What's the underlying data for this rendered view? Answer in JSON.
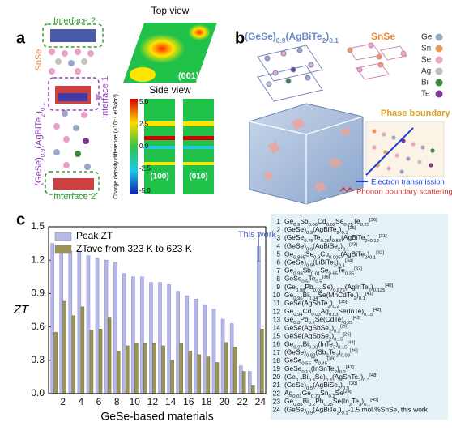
{
  "panel_a": {
    "label": "a",
    "interface_top": "Interface 2",
    "snse": "SnSe",
    "compound": "(GeSe)0.9(AgBiTe2)0.1",
    "interface_1": "Interface 1",
    "interface_bottom": "Interface 2",
    "top_view": "Top view",
    "top_plane": "(001)",
    "side_view": "Side view",
    "side_plane_1": "(100)",
    "side_plane_2": "(010)",
    "colorbar_label": "Charge density difference (×10⁻⁴ e/Bohr³)",
    "colorbar_ticks": [
      "5.0",
      "2.5",
      "0.0",
      "-2.5",
      "-5.0"
    ]
  },
  "panel_b": {
    "label": "b",
    "compound": "(GeSe)0.9(AgBiTe2)0.1",
    "snse": "SnSe",
    "elements": [
      "Ge",
      "Sn",
      "Se",
      "Ag",
      "Bi",
      "Te"
    ],
    "element_colors": [
      "#9aa7c7",
      "#e89a5a",
      "#e7a6c8",
      "#bdbdbd",
      "#3c8a3c",
      "#7a3b96"
    ],
    "phase_boundary": "Phase boundary",
    "electron": "Electron transmission",
    "phonon": "Phonon boundary scattering"
  },
  "chart_data": {
    "type": "bar",
    "panel_label": "c",
    "x_label": "GeSe-based materials",
    "y_label": "ZT",
    "annotation": "This work",
    "x": [
      1,
      2,
      3,
      4,
      5,
      6,
      7,
      8,
      9,
      10,
      11,
      12,
      13,
      14,
      15,
      16,
      17,
      18,
      19,
      20,
      21,
      22,
      23,
      24
    ],
    "xlim": [
      0.4,
      24.6
    ],
    "xticks": [
      2,
      4,
      6,
      8,
      10,
      12,
      14,
      16,
      18,
      20,
      22,
      24
    ],
    "ylim": [
      0,
      1.5
    ],
    "yticks": [
      {
        "value": 0,
        "label": "0.0"
      },
      0.3,
      0.6,
      0.9,
      1.2,
      1.5
    ],
    "series": [
      {
        "name": "Peak ZT",
        "color": "#b6b9e8",
        "values": [
          1.35,
          1.33,
          1.28,
          1.28,
          1.24,
          1.22,
          1.2,
          1.18,
          1.08,
          1.05,
          1.05,
          1.0,
          1.0,
          0.98,
          0.92,
          0.88,
          0.85,
          0.8,
          0.76,
          0.67,
          0.63,
          0.25,
          0.2,
          1.32
        ],
        "errors": [
          null,
          null,
          null,
          null,
          null,
          null,
          null,
          null,
          null,
          null,
          null,
          null,
          null,
          null,
          null,
          null,
          null,
          null,
          null,
          null,
          null,
          null,
          null,
          0.13
        ]
      },
      {
        "name": "ZTave from 323 K to 623 K",
        "color": "#9b9457",
        "values": [
          0.55,
          0.83,
          0.7,
          0.78,
          0.57,
          0.58,
          0.68,
          0.38,
          0.43,
          0.45,
          0.45,
          0.45,
          0.43,
          0.3,
          0.45,
          0.38,
          0.35,
          0.33,
          0.28,
          0.46,
          0.42,
          0.2,
          0.07,
          0.58
        ]
      }
    ],
    "references": [
      {
        "n": "1",
        "text": "Ge0.9Sb0.06Cd0.02Se0.75Te0.25[36]"
      },
      {
        "n": "2",
        "text": "(GeSe)0.9(AgBiTe2)0.1[25]"
      },
      {
        "n": "3",
        "text": "(GeSe0.75Te0.25)0.88(AgBiTe2)0.12[31]"
      },
      {
        "n": "4",
        "text": "(GeSe)0.9(AgBiSe2)0.1[33]"
      },
      {
        "n": "5",
        "text": "Ge0.895Se0.9Cu0.005(AgBiTe2)0.1[32]"
      },
      {
        "n": "6",
        "text": "(GeSe)0.9(LiBiTe2)0.1[34]"
      },
      {
        "n": "7",
        "text": "Ge0.99Sb0.01Se0.65Te0.35[37]"
      },
      {
        "n": "8",
        "text": "GeSe0.5Te0.5[38]"
      },
      {
        "n": "9",
        "text": "(Ge0.98Pb0.02Se)0.875(AgInTe2)0.125[40]"
      },
      {
        "n": "10",
        "text": "Ge0.96Bi0.04Se(MnCdTe2)0.1[41]"
      },
      {
        "n": "11",
        "text": "GeSe(AgSbTe2)0.2[35]"
      },
      {
        "n": "12",
        "text": "Ge0.94Cd0.03Ag0.03Se(InTe)0.15[42]"
      },
      {
        "n": "13",
        "text": "Ge0.8Pb0.2Se(CdTe)0.25[43]"
      },
      {
        "n": "14",
        "text": "GeSe(AgSbSe2)0.2[29]"
      },
      {
        "n": "15",
        "text": "GeSe(AgSbSe2)0.15[26]"
      },
      {
        "n": "16",
        "text": "Ge0.97Bi0.03(InTe3)0.15[44]"
      },
      {
        "n": "17",
        "text": "(GeSe)0.92(Sb2Te3)0.08[46]"
      },
      {
        "n": "18",
        "text": "GeSe0.55Te0.45[39]"
      },
      {
        "n": "19",
        "text": "GeSe0.15(InSnTe2)0.2[47]"
      },
      {
        "n": "20",
        "text": "(Ge0.7Bi0.3Se)0.3(AgSnTe2)0.3[48]"
      },
      {
        "n": "21",
        "text": "(GeSe)0.5(AgBiSe2)0.5[30]"
      },
      {
        "n": "22",
        "text": "Ag0.01Ge0.79Sn0.2Se[24]"
      },
      {
        "n": "23",
        "text": "Ge0.85Bi0.2Pb0.25Se(In2Te3)0.1[45]"
      },
      {
        "n": "24",
        "text": "(GeSe)0.9(AgBiTe2)0.1-1.5 mol.%SnSe, this work"
      }
    ]
  }
}
